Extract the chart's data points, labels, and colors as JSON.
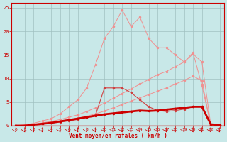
{
  "xlabel": "Vent moyen/en rafales ( km/h )",
  "xlim": [
    -0.5,
    23.5
  ],
  "ylim": [
    0,
    26
  ],
  "xticks": [
    0,
    1,
    2,
    3,
    4,
    5,
    6,
    7,
    8,
    9,
    10,
    11,
    12,
    13,
    14,
    15,
    16,
    17,
    18,
    19,
    20,
    21,
    22,
    23
  ],
  "yticks": [
    0,
    5,
    10,
    15,
    20,
    25
  ],
  "bg_color": "#c8e8e8",
  "grid_color": "#a0c0c0",
  "x": [
    0,
    1,
    2,
    3,
    4,
    5,
    6,
    7,
    8,
    9,
    10,
    11,
    12,
    13,
    14,
    15,
    16,
    17,
    18,
    19,
    20,
    21,
    22,
    23
  ],
  "line_peaked": [
    0,
    0.2,
    0.5,
    1.0,
    1.5,
    2.5,
    4.0,
    5.5,
    8.0,
    13.0,
    18.5,
    21.0,
    24.5,
    21.0,
    23.0,
    18.5,
    16.5,
    16.5,
    15.0,
    13.5,
    15.5,
    8.5,
    0.2,
    0.1
  ],
  "line_diag1": [
    0,
    0.1,
    0.3,
    0.6,
    0.9,
    1.3,
    1.8,
    2.3,
    3.0,
    3.8,
    4.8,
    5.8,
    6.8,
    7.8,
    8.8,
    9.8,
    10.8,
    11.5,
    12.5,
    13.5,
    15.2,
    13.5,
    0.2,
    0.1
  ],
  "line_diag2": [
    0,
    0.05,
    0.2,
    0.4,
    0.6,
    0.9,
    1.2,
    1.6,
    2.0,
    2.5,
    3.1,
    3.8,
    4.5,
    5.2,
    5.9,
    6.6,
    7.3,
    8.0,
    8.8,
    9.6,
    10.5,
    9.5,
    0.1,
    0.0
  ],
  "line_hump": [
    0,
    0,
    0.2,
    0.4,
    0.6,
    0.8,
    1.0,
    1.3,
    1.8,
    2.3,
    8.0,
    8.0,
    8.0,
    7.0,
    5.5,
    4.0,
    3.2,
    3.0,
    3.2,
    3.5,
    4.0,
    4.0,
    0.2,
    0.0
  ],
  "line_bold": [
    0,
    0,
    0.2,
    0.4,
    0.6,
    0.9,
    1.2,
    1.5,
    1.8,
    2.1,
    2.4,
    2.6,
    2.8,
    3.0,
    3.2,
    3.1,
    3.2,
    3.4,
    3.6,
    3.8,
    4.0,
    4.0,
    0.3,
    0.1
  ],
  "color_light": "#f09090",
  "color_medium": "#d04040",
  "color_dark": "#cc0000",
  "color_bold": "#cc0000"
}
